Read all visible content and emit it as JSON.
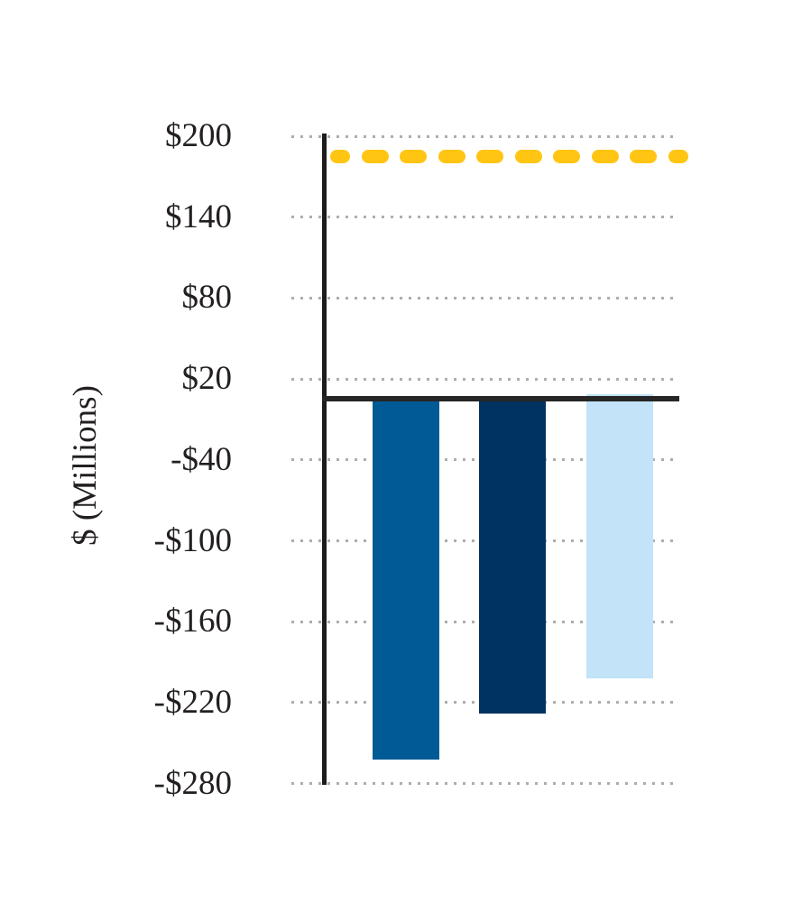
{
  "chart_data": {
    "type": "bar",
    "title": "",
    "ylabel": "$ (Millions)",
    "xlabel": "",
    "categories": [
      "",
      "",
      ""
    ],
    "bars": [
      {
        "value": -262,
        "color": "#005A96"
      },
      {
        "value": -228,
        "color": "#003262"
      },
      {
        "value": -202,
        "color": "#C2E3F8"
      }
    ],
    "reference_line": {
      "value": 185,
      "style": "dashed",
      "color": "#FFC512"
    },
    "y_ticks": [
      {
        "label": "$200",
        "value": 200
      },
      {
        "label": "$140",
        "value": 140
      },
      {
        "label": "$80",
        "value": 80
      },
      {
        "label": "$20",
        "value": 20
      },
      {
        "label": "-$40",
        "value": -40
      },
      {
        "label": "-$100",
        "value": -100
      },
      {
        "label": "-$160",
        "value": -160
      },
      {
        "label": "-$220",
        "value": -220
      },
      {
        "label": "-$280",
        "value": -280
      }
    ],
    "ylim": [
      -280,
      200
    ],
    "grid": "horizontal-dotted",
    "legend": "none"
  },
  "colors": {
    "axis": "#1C1C1C",
    "zero_line": "#262626",
    "grid_dots": "#ADADAD",
    "text": "#231F20",
    "background": "#FFFFFF"
  }
}
